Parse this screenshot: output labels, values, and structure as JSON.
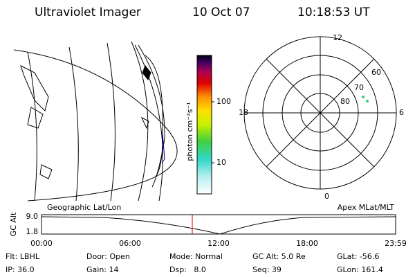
{
  "header": {
    "instrument": "Ultraviolet Imager",
    "date": "10 Oct 07",
    "time": "10:18:53 UT"
  },
  "colorbar": {
    "label": "photon cm⁻²s⁻¹",
    "ticks": [
      100,
      10
    ]
  },
  "polar_plot": {
    "mlt_labels": [
      "12",
      "18",
      "6",
      "0"
    ],
    "lat_labels": [
      "60",
      "70",
      "80"
    ]
  },
  "orbit_plot": {
    "left_label": "Geographic Lat/Lon",
    "right_label": "Apex MLat/MLT",
    "y_label": "GC Alt",
    "y_labels": [
      "9.0",
      "1.8"
    ],
    "time_labels": [
      "00:00",
      "06:00",
      "12:00",
      "18:00",
      "23:59"
    ]
  },
  "info": {
    "rows": [
      [
        "Flt: LBHL",
        "Door: Open",
        "Mode: Normal",
        "GC Alt: 5.0 Re",
        "GLat: -56.6"
      ],
      [
        "IP: 36.0",
        "Gain: 14",
        "Dsp:   8.0",
        "Seq: 39",
        "GLon: 161.4"
      ]
    ]
  }
}
